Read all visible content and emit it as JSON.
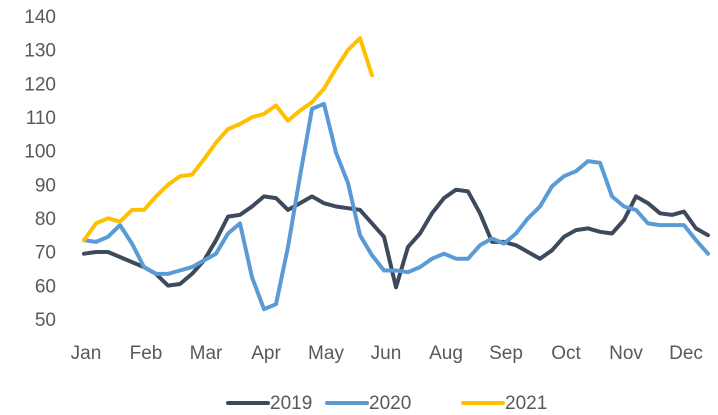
{
  "chart_data": {
    "type": "line",
    "categories": [
      "Jan",
      null,
      null,
      null,
      null,
      "Feb",
      null,
      null,
      null,
      null,
      "Mar",
      null,
      null,
      null,
      null,
      "Apr",
      null,
      null,
      null,
      null,
      "May",
      null,
      null,
      null,
      null,
      "Jun",
      null,
      null,
      null,
      null,
      "Aug",
      null,
      null,
      null,
      null,
      "Sep",
      null,
      null,
      null,
      null,
      "Oct",
      null,
      null,
      null,
      null,
      "Nov",
      null,
      null,
      null,
      null,
      "Dec",
      null,
      null
    ],
    "series": [
      {
        "name": "2019",
        "color": "#3d4a5c",
        "values": [
          70,
          70.5,
          70.5,
          69,
          67.5,
          66,
          64,
          60.5,
          61,
          64,
          68,
          74,
          81,
          81.5,
          84,
          87,
          86.5,
          83,
          85,
          87,
          85,
          84,
          83.5,
          83,
          79,
          75,
          60,
          72,
          76,
          82,
          86.5,
          89,
          88.5,
          82,
          73.5,
          73.5,
          72.5,
          70.5,
          68.5,
          71,
          75,
          77,
          77.5,
          76.5,
          76,
          80,
          87,
          85,
          82,
          81.5,
          82.5,
          77.5,
          75.5
        ]
      },
      {
        "name": "2020",
        "color": "#5b9bd5",
        "values": [
          74,
          73.5,
          75,
          78.5,
          73,
          66,
          64,
          64,
          65,
          66,
          68,
          70,
          76,
          79,
          63,
          53.5,
          55,
          72,
          93,
          113,
          114.5,
          100,
          91,
          75.5,
          69.5,
          65,
          65,
          64.5,
          66,
          68.5,
          70,
          68.5,
          68.5,
          72.5,
          74.5,
          73,
          76,
          80.5,
          84,
          90,
          93,
          94.5,
          97.5,
          97,
          87,
          84,
          83,
          79,
          78.5,
          78.5,
          78.5,
          74,
          70
        ]
      },
      {
        "name": "2021",
        "color": "#ffc000",
        "values": [
          74,
          79,
          80.5,
          79.5,
          83,
          83,
          87,
          90.5,
          93,
          93.5,
          98,
          103,
          107,
          108.5,
          110.5,
          111.5,
          114,
          109.5,
          112.5,
          115,
          119,
          125,
          130.5,
          134,
          123,
          null,
          null,
          null,
          null,
          null,
          null,
          null,
          null,
          null,
          null,
          null,
          null,
          null,
          null,
          null,
          null,
          null,
          null,
          null,
          null,
          null,
          null,
          null,
          null,
          null,
          null,
          null,
          null
        ]
      }
    ],
    "ylim": [
      50,
      140
    ],
    "yticks": [
      50,
      60,
      70,
      80,
      90,
      100,
      110,
      120,
      130,
      140
    ],
    "grid": false,
    "legend": "bottom"
  }
}
